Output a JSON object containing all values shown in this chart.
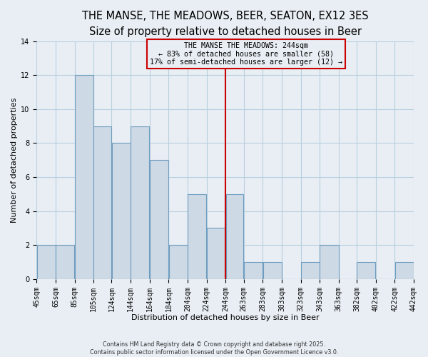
{
  "title": "THE MANSE, THE MEADOWS, BEER, SEATON, EX12 3ES",
  "subtitle": "Size of property relative to detached houses in Beer",
  "xlabel": "Distribution of detached houses by size in Beer",
  "ylabel": "Number of detached properties",
  "bar_color": "#cdd9e5",
  "bar_edge_color": "#6e9dc0",
  "grid_color": "#b8cfe0",
  "vline_x": 244,
  "vline_color": "#cc0000",
  "annotation_line1": "THE MANSE THE MEADOWS: 244sqm",
  "annotation_line2": "← 83% of detached houses are smaller (58)",
  "annotation_line3": "17% of semi-detached houses are larger (12) →",
  "annotation_box_color": "#cc0000",
  "bins": [
    45,
    65,
    85,
    105,
    124,
    144,
    164,
    184,
    204,
    224,
    244,
    263,
    283,
    303,
    323,
    343,
    363,
    382,
    402,
    422,
    442
  ],
  "counts": [
    2,
    2,
    12,
    9,
    8,
    9,
    7,
    2,
    5,
    3,
    5,
    1,
    1,
    0,
    1,
    2,
    0,
    1,
    0,
    1
  ],
  "xlabels": [
    "45sqm",
    "65sqm",
    "85sqm",
    "105sqm",
    "124sqm",
    "144sqm",
    "164sqm",
    "184sqm",
    "204sqm",
    "224sqm",
    "244sqm",
    "263sqm",
    "283sqm",
    "303sqm",
    "323sqm",
    "343sqm",
    "363sqm",
    "382sqm",
    "402sqm",
    "422sqm",
    "442sqm"
  ],
  "ylim": [
    0,
    14
  ],
  "yticks": [
    0,
    2,
    4,
    6,
    8,
    10,
    12,
    14
  ],
  "footer1": "Contains HM Land Registry data © Crown copyright and database right 2025.",
  "footer2": "Contains public sector information licensed under the Open Government Licence v3.0.",
  "background_color": "#e8eef4",
  "title_fontsize": 10.5,
  "subtitle_fontsize": 9,
  "tick_fontsize": 7,
  "label_fontsize": 8
}
